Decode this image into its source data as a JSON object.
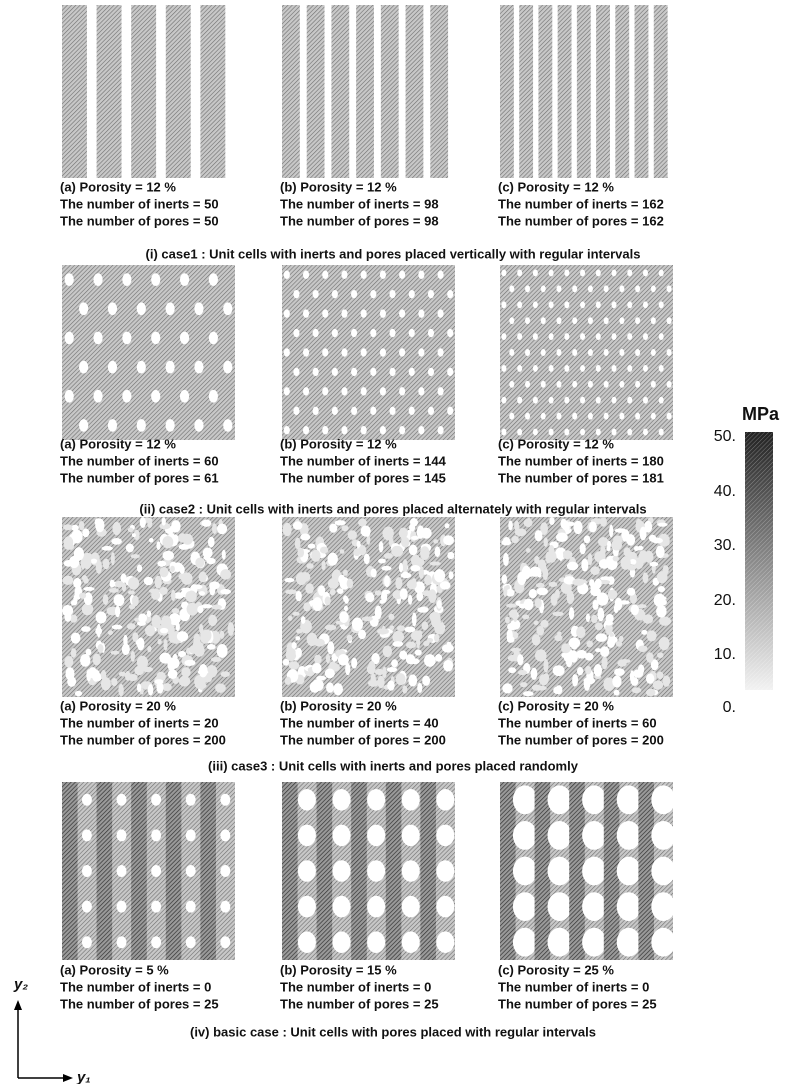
{
  "rows": [
    {
      "panels": [
        {
          "porosity": "(a) Porosity = 12 %",
          "inerts": "The number of inerts = 50",
          "pores": "The number of pores = 50"
        },
        {
          "porosity": "(b) Porosity = 12 %",
          "inerts": "The number of inerts = 98",
          "pores": "The number of pores = 98"
        },
        {
          "porosity": "(c) Porosity = 12 %",
          "inerts": "The number of inerts = 162",
          "pores": "The number of pores = 162"
        }
      ],
      "caption": "(i) case1 : Unit cells with inerts and pores placed vertically with regular intervals"
    },
    {
      "panels": [
        {
          "porosity": "(a) Porosity = 12 %",
          "inerts": "The number of inerts = 60",
          "pores": "The number of pores = 61"
        },
        {
          "porosity": "(b) Porosity = 12 %",
          "inerts": "The number of inerts = 144",
          "pores": "The number of pores = 145"
        },
        {
          "porosity": "(c) Porosity = 12 %",
          "inerts": "The number of inerts = 180",
          "pores": "The number of pores = 181"
        }
      ],
      "caption": "(ii) case2 : Unit cells with inerts and pores placed alternately with regular intervals"
    },
    {
      "panels": [
        {
          "porosity": "(a) Porosity = 20 %",
          "inerts": "The number of inerts = 20",
          "pores": "The number of pores = 200"
        },
        {
          "porosity": "(b) Porosity = 20 %",
          "inerts": "The number of inerts = 40",
          "pores": "The number of pores = 200"
        },
        {
          "porosity": "(c) Porosity = 20 %",
          "inerts": "The number of inerts = 60",
          "pores": "The number of pores = 200"
        }
      ],
      "caption": "(iii) case3 : Unit cells with inerts and pores placed randomly"
    },
    {
      "panels": [
        {
          "porosity": "(a) Porosity = 5 %",
          "inerts": "The number of inerts = 0",
          "pores": "The number of pores = 25"
        },
        {
          "porosity": "(b) Porosity = 15 %",
          "inerts": "The number of inerts = 0",
          "pores": "The number of pores = 25"
        },
        {
          "porosity": "(c) Porosity = 25 %",
          "inerts": "The number of inerts = 0",
          "pores": "The number of pores = 25"
        }
      ],
      "caption": "(iv) basic case : Unit cells with pores placed with regular intervals"
    }
  ],
  "colorbar": {
    "unit": "MPa",
    "ticks": [
      "50.",
      "40.",
      "30.",
      "20.",
      "10.",
      "0."
    ]
  },
  "axes": {
    "vertical": "y₂",
    "horizontal": "y₁"
  }
}
